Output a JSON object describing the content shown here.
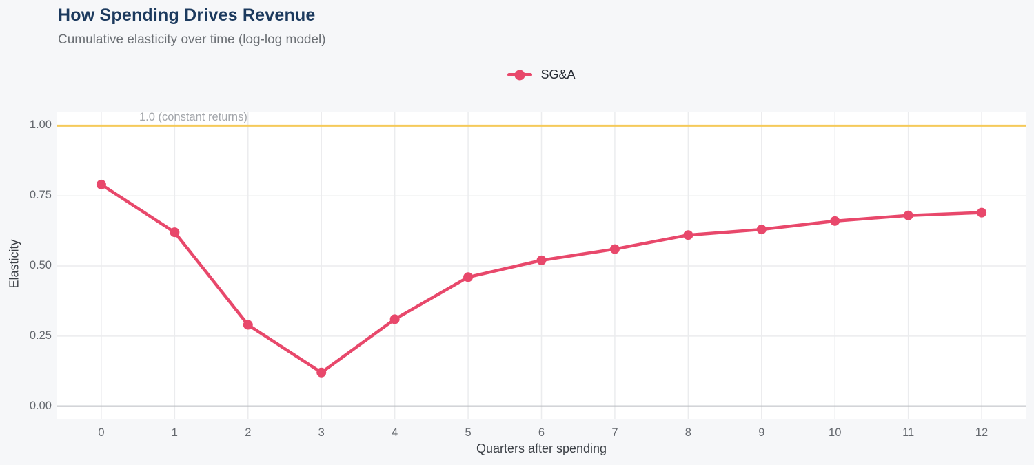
{
  "header": {
    "title": "How Spending Drives Revenue",
    "subtitle": "Cumulative elasticity over time (log-log model)"
  },
  "legend": {
    "series_label": "SG&A"
  },
  "annotation": {
    "label": "1.0 (constant returns)",
    "value": 1.0
  },
  "colors": {
    "series": "#e8486b",
    "reference_line": "#f5ca5a",
    "grid": "#ebecee",
    "zero_line": "#b9bbc0",
    "panel_background": "#ffffff",
    "page_background": "#f6f7f9",
    "title": "#1c3a5e"
  },
  "chart_data": {
    "type": "line",
    "title": "How Spending Drives Revenue",
    "subtitle": "Cumulative elasticity over time (log-log model)",
    "xlabel": "Quarters after spending",
    "ylabel": "Elasticity",
    "x": [
      0,
      1,
      2,
      3,
      4,
      5,
      6,
      7,
      8,
      9,
      10,
      11,
      12
    ],
    "series": [
      {
        "name": "SG&A",
        "values": [
          0.79,
          0.62,
          0.29,
          0.12,
          0.31,
          0.46,
          0.52,
          0.56,
          0.61,
          0.63,
          0.66,
          0.68,
          0.69
        ]
      }
    ],
    "reference_line": {
      "value": 1.0,
      "label": "1.0 (constant returns)"
    },
    "x_ticks": [
      0,
      1,
      2,
      3,
      4,
      5,
      6,
      7,
      8,
      9,
      10,
      11,
      12
    ],
    "y_ticks": [
      0.0,
      0.25,
      0.5,
      0.75,
      1.0
    ],
    "xlim": [
      -0.61,
      12.61
    ],
    "ylim": [
      -0.045,
      1.05
    ],
    "grid": true,
    "legend_position": "top-center"
  }
}
